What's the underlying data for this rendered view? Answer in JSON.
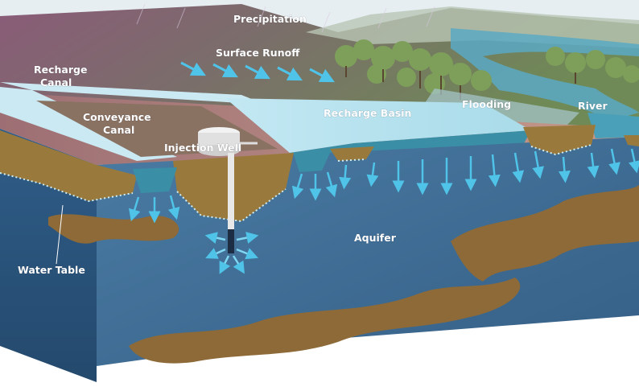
{
  "labels": {
    "precipitation": "Precipitation",
    "surface_runoff": "Surface Runoff",
    "recharge_canal_1": "Recharge",
    "recharge_canal_2": "Canal",
    "conveyance_canal_1": "Conveyance",
    "conveyance_canal_2": "Canal",
    "injection_well": "Injection Well",
    "recharge_basin": "Recharge Basin",
    "flooding": "Flooding",
    "river": "River",
    "aquifer": "Aquifer",
    "water_table": "Water Table"
  },
  "colors": {
    "sky": "#e6eef2",
    "hill_purple": "#8a5b78",
    "hill_green": "#6f8a56",
    "ground_top": "#b98e86",
    "soil": "#9a7a3c",
    "aquifer": "#3f6f95",
    "aquifer_dark": "#2f5a80",
    "water": "#b9e2ef",
    "water_deep": "#3a8fa6",
    "clay": "#8d6a38",
    "arrow": "#4fc3e8",
    "water_table_dots": "#cfeff7",
    "tree": "#7e9f5a"
  }
}
